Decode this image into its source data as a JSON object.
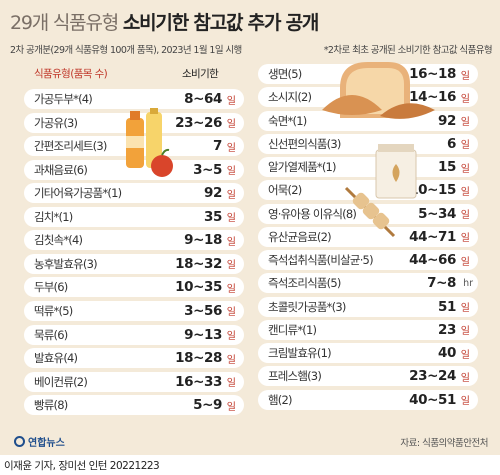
{
  "header": {
    "title_light": "29개 식품유형",
    "title_bold": "소비기한 참고값 추가 공개",
    "subtitle_left": "2차 공개분(29개 식품유형 100개 품목), 2023년 1월 1일 시행",
    "subtitle_right": "*2차로 최초 공개된 소비기한 참고값 식품유형",
    "col_name": "식품유형(품목 수)",
    "col_value": "소비기한"
  },
  "left_items": [
    {
      "name": "가공두부*(4)",
      "value": "8~64",
      "unit": "일"
    },
    {
      "name": "가공유(3)",
      "value": "23~26",
      "unit": "일"
    },
    {
      "name": "간편조리세트(3)",
      "value": "7",
      "unit": "일"
    },
    {
      "name": "과채음료(6)",
      "value": "3~5",
      "unit": "일"
    },
    {
      "name": "기타어육가공품*(1)",
      "value": "92",
      "unit": "일"
    },
    {
      "name": "김치*(1)",
      "value": "35",
      "unit": "일"
    },
    {
      "name": "김칫속*(4)",
      "value": "9~18",
      "unit": "일"
    },
    {
      "name": "농후발효유(3)",
      "value": "18~32",
      "unit": "일"
    },
    {
      "name": "두부(6)",
      "value": "10~35",
      "unit": "일"
    },
    {
      "name": "떡류*(5)",
      "value": "3~56",
      "unit": "일"
    },
    {
      "name": "묵류(6)",
      "value": "9~13",
      "unit": "일"
    },
    {
      "name": "발효유(4)",
      "value": "18~28",
      "unit": "일"
    },
    {
      "name": "베이컨류(2)",
      "value": "16~33",
      "unit": "일"
    },
    {
      "name": "빵류(8)",
      "value": "5~9",
      "unit": "일"
    }
  ],
  "right_items": [
    {
      "name": "생면(5)",
      "value": "16~18",
      "unit": "일"
    },
    {
      "name": "소시지(2)",
      "value": "14~16",
      "unit": "일"
    },
    {
      "name": "숙면*(1)",
      "value": "92",
      "unit": "일"
    },
    {
      "name": "신선편의식품(3)",
      "value": "6",
      "unit": "일"
    },
    {
      "name": "알가열제품*(1)",
      "value": "15",
      "unit": "일"
    },
    {
      "name": "어묵(2)",
      "value": "10~15",
      "unit": "일"
    },
    {
      "name": "영·유아용 이유식(8)",
      "value": "5~34",
      "unit": "일"
    },
    {
      "name": "유산균음료(2)",
      "value": "44~71",
      "unit": "일"
    },
    {
      "name": "즉석섭취식품(비살균·5)",
      "value": "44~66",
      "unit": "일"
    },
    {
      "name": "즉석조리식품(5)",
      "value": "7~8",
      "unit": "hr"
    },
    {
      "name": "초콜릿가공품*(3)",
      "value": "51",
      "unit": "일"
    },
    {
      "name": "캔디류*(1)",
      "value": "23",
      "unit": "일"
    },
    {
      "name": "크림발효유(1)",
      "value": "40",
      "unit": "일"
    },
    {
      "name": "프레스햄(3)",
      "value": "23~24",
      "unit": "일"
    },
    {
      "name": "햄(2)",
      "value": "40~51",
      "unit": "일"
    }
  ],
  "footer": {
    "logo": "연합뉴스",
    "source": "자료: 식품의약품안전처",
    "credit": "이재윤 기자, 장미선 인턴  20221223"
  },
  "colors": {
    "background": "#f4ead9",
    "row": "#ffffff",
    "accent_red": "#c0392b"
  }
}
